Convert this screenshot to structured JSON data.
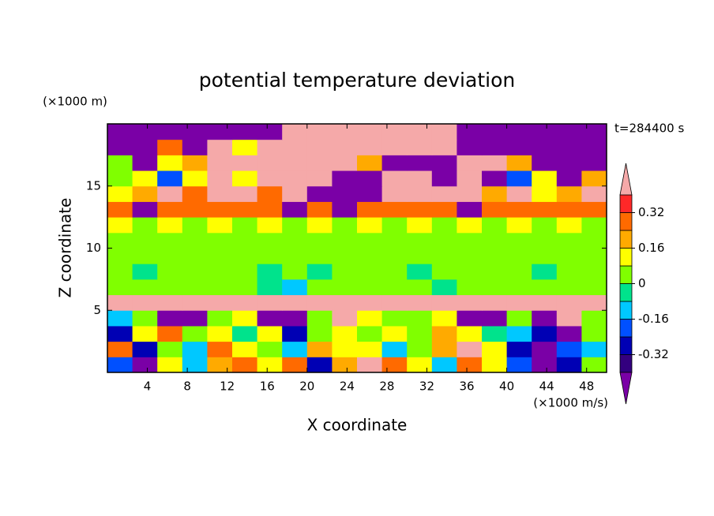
{
  "chart_data": {
    "type": "contour",
    "title": "potential temperature deviation",
    "x_label": "X coordinate",
    "y_label": "Z coordinate",
    "x_unit": "(×1000 m/s)",
    "y_unit": "(×1000 m)",
    "time_label": "t=284400 s",
    "xlim": [
      0,
      50
    ],
    "ylim": [
      0,
      20
    ],
    "xticks": [
      4,
      8,
      12,
      16,
      20,
      24,
      28,
      32,
      36,
      40,
      44,
      48
    ],
    "yticks": [
      5,
      10,
      15
    ],
    "x": [
      1.25,
      3.75,
      6.25,
      8.75,
      11.25,
      13.75,
      16.25,
      18.75,
      21.25,
      23.75,
      26.25,
      28.75,
      31.25,
      33.75,
      36.25,
      38.75,
      41.25,
      43.75,
      46.25,
      48.75
    ],
    "y": [
      0.625,
      1.875,
      3.125,
      4.375,
      5.625,
      6.875,
      8.125,
      9.375,
      10.625,
      11.875,
      13.125,
      14.375,
      15.625,
      16.875,
      18.125,
      19.375
    ],
    "z": [
      [
        -0.2,
        -0.45,
        0.1,
        -0.1,
        0.2,
        0.3,
        0.1,
        0.3,
        -0.3,
        0.2,
        0.45,
        0.3,
        0.1,
        -0.1,
        0.3,
        0.1,
        -0.2,
        -0.45,
        -0.3,
        0.05
      ],
      [
        0.3,
        -0.3,
        0.05,
        -0.15,
        0.25,
        0.1,
        0.05,
        -0.1,
        0.2,
        0.1,
        0.15,
        -0.1,
        0.05,
        0.2,
        0.45,
        0.15,
        -0.3,
        -0.45,
        -0.2,
        -0.1
      ],
      [
        -0.3,
        0.1,
        0.25,
        0.05,
        0.15,
        -0.05,
        0.1,
        -0.25,
        0.02,
        0.1,
        0.05,
        0.15,
        0.05,
        0.2,
        0.1,
        -0.05,
        -0.1,
        -0.3,
        -0.45,
        0.05
      ],
      [
        -0.1,
        0.05,
        -0.45,
        -0.45,
        0.05,
        0.1,
        -0.45,
        -0.45,
        0.05,
        0.45,
        0.1,
        0.02,
        0.05,
        0.1,
        -0.45,
        -0.45,
        0.05,
        -0.45,
        0.45,
        0.02
      ],
      [
        0.45,
        0.45,
        0.45,
        0.45,
        0.45,
        0.45,
        0.45,
        0.45,
        0.45,
        0.45,
        0.45,
        0.45,
        0.45,
        0.45,
        0.45,
        0.45,
        0.45,
        0.45,
        0.45,
        0.45
      ],
      [
        0.03,
        0.02,
        0.04,
        0.03,
        0.02,
        0.03,
        -0.03,
        -0.1,
        0.03,
        0.02,
        0.04,
        0.03,
        0.02,
        -0.02,
        0.03,
        0.02,
        0.04,
        0.03,
        0.02,
        0.03
      ],
      [
        0.03,
        -0.02,
        0.03,
        0.04,
        0.03,
        0.02,
        -0.02,
        0.03,
        -0.02,
        0.03,
        0.04,
        0.03,
        -0.02,
        0.03,
        0.03,
        0.02,
        0.03,
        -0.02,
        0.03,
        0.04
      ],
      [
        0.04,
        0.04,
        0.03,
        0.04,
        0.05,
        0.04,
        0.03,
        0.04,
        0.04,
        0.05,
        0.04,
        0.03,
        0.04,
        0.04,
        0.05,
        0.04,
        0.03,
        0.04,
        0.04,
        0.05
      ],
      [
        0.06,
        0.05,
        0.06,
        0.06,
        0.05,
        0.06,
        0.06,
        0.05,
        0.06,
        0.06,
        0.05,
        0.06,
        0.06,
        0.05,
        0.06,
        0.06,
        0.05,
        0.06,
        0.06,
        0.05
      ],
      [
        0.1,
        0.05,
        0.1,
        0.05,
        0.1,
        0.05,
        0.1,
        0.05,
        0.1,
        0.05,
        0.1,
        0.05,
        0.1,
        0.05,
        0.1,
        0.05,
        0.1,
        0.05,
        0.1,
        0.05
      ],
      [
        0.3,
        -0.45,
        0.28,
        0.3,
        0.28,
        0.3,
        0.3,
        -0.45,
        0.3,
        -0.45,
        0.3,
        0.3,
        0.3,
        0.3,
        -0.45,
        0.3,
        0.28,
        0.3,
        0.3,
        0.3
      ],
      [
        0.1,
        0.2,
        0.45,
        0.3,
        0.45,
        0.45,
        0.3,
        0.45,
        -0.45,
        -0.45,
        -0.45,
        0.45,
        0.45,
        0.45,
        0.45,
        0.2,
        0.45,
        0.1,
        0.2,
        0.45
      ],
      [
        0.02,
        0.15,
        -0.2,
        0.1,
        0.45,
        0.1,
        0.45,
        0.45,
        0.45,
        -0.45,
        -0.45,
        0.45,
        0.45,
        -0.45,
        0.45,
        -0.45,
        -0.2,
        0.1,
        -0.45,
        0.2
      ],
      [
        0.05,
        -0.45,
        0.1,
        0.2,
        0.45,
        0.45,
        0.45,
        0.45,
        0.45,
        0.45,
        0.2,
        -0.45,
        -0.45,
        -0.45,
        0.45,
        0.45,
        0.2,
        -0.45,
        -0.45,
        -0.45
      ],
      [
        -0.45,
        -0.45,
        0.3,
        -0.45,
        0.45,
        0.1,
        0.45,
        0.45,
        0.45,
        0.45,
        0.45,
        0.45,
        0.45,
        0.45,
        -0.45,
        -0.45,
        -0.45,
        -0.45,
        -0.45,
        -0.45
      ],
      [
        -0.45,
        -0.45,
        -0.45,
        -0.45,
        -0.45,
        -0.45,
        -0.45,
        0.45,
        0.45,
        0.45,
        0.45,
        0.45,
        0.45,
        0.45,
        -0.45,
        -0.45,
        -0.45,
        -0.45,
        -0.45,
        -0.45
      ]
    ],
    "levels": [
      -0.4,
      -0.32,
      -0.24,
      -0.16,
      -0.08,
      0,
      0.08,
      0.16,
      0.24,
      0.32,
      0.4
    ],
    "colors": [
      "#7a00a6",
      "#33007f",
      "#0000b4",
      "#0050ff",
      "#00c8ff",
      "#00e38c",
      "#80ff00",
      "#ffff00",
      "#ffaa00",
      "#ff6a00",
      "#ff2828",
      "#f5a9a9"
    ],
    "colorbar_ticks": [
      -0.32,
      -0.16,
      0,
      0.16,
      0.32
    ]
  }
}
